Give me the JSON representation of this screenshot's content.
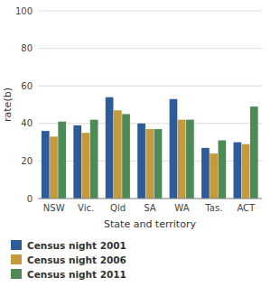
{
  "chart_data": {
    "type": "bar",
    "categories": [
      "NSW",
      "Vic.",
      "Qld",
      "SA",
      "WA",
      "Tas.",
      "ACT"
    ],
    "series": [
      {
        "name": "Census night 2001",
        "color": "#2e5c99",
        "values": [
          36,
          39,
          54,
          40,
          53,
          27,
          30
        ]
      },
      {
        "name": "Census night 2006",
        "color": "#c49a3c",
        "values": [
          33,
          35,
          47,
          37,
          42,
          24,
          29
        ]
      },
      {
        "name": "Census night 2011",
        "color": "#4d8a55",
        "values": [
          41,
          42,
          45,
          37,
          42,
          31,
          49
        ]
      }
    ],
    "xlabel": "State and territory",
    "ylabel": "rate(b)",
    "ylim": [
      0,
      100
    ],
    "yticks": [
      0,
      20,
      40,
      60,
      80,
      100
    ],
    "grid": true,
    "legend": "bottom"
  }
}
